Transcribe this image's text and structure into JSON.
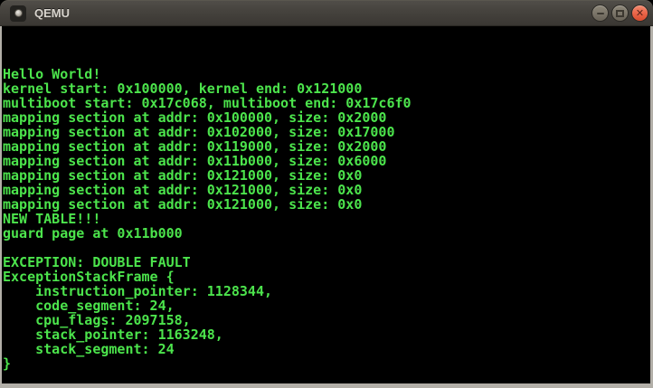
{
  "window": {
    "title": "QEMU",
    "buttons": {
      "minimize": {
        "name": "minimize",
        "glyph": "–"
      },
      "maximize": {
        "name": "maximize",
        "glyph": "□"
      },
      "close": {
        "name": "close",
        "glyph": "✕"
      }
    }
  },
  "theme": {
    "titlebar_bg": "#45423d",
    "titlebar_text": "#d8d4cd",
    "button_gray": "#7a7468",
    "close_button_orange": "#e96347",
    "window_border": "#b2afa8",
    "console_bg": "#000000",
    "console_fg": "#4ce44c"
  },
  "console": {
    "lines": [
      "Hello World!",
      "kernel start: 0x100000, kernel end: 0x121000",
      "multiboot start: 0x17c068, multiboot end: 0x17c6f0",
      "mapping section at addr: 0x100000, size: 0x2000",
      "mapping section at addr: 0x102000, size: 0x17000",
      "mapping section at addr: 0x119000, size: 0x2000",
      "mapping section at addr: 0x11b000, size: 0x6000",
      "mapping section at addr: 0x121000, size: 0x0",
      "mapping section at addr: 0x121000, size: 0x0",
      "mapping section at addr: 0x121000, size: 0x0",
      "NEW TABLE!!!",
      "guard page at 0x11b000",
      "",
      "EXCEPTION: DOUBLE FAULT",
      "ExceptionStackFrame {",
      "    instruction_pointer: 1128344,",
      "    code_segment: 24,",
      "    cpu_flags: 2097158,",
      "    stack_pointer: 1163248,",
      "    stack_segment: 24",
      "}"
    ]
  }
}
